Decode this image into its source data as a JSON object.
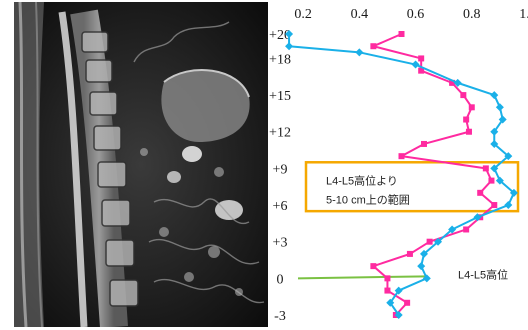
{
  "chart_data": {
    "type": "line",
    "x_ticks": [
      "0.2",
      "0.4",
      "0.6",
      "0.8",
      "1.0"
    ],
    "xlim": [
      0.1,
      1.0
    ],
    "y_ticks": [
      "+20",
      "+18",
      "+15",
      "+12",
      "+9",
      "+6",
      "+3",
      "0",
      "-3"
    ],
    "ylim": [
      -3,
      20
    ],
    "series": [
      {
        "color": "#ff2aa0",
        "points": [
          [
            0.55,
            20
          ],
          [
            0.45,
            19
          ],
          [
            0.62,
            18
          ],
          [
            0.62,
            17
          ],
          [
            0.73,
            16
          ],
          [
            0.77,
            15
          ],
          [
            0.8,
            14
          ],
          [
            0.78,
            13
          ],
          [
            0.79,
            12
          ],
          [
            0.63,
            11
          ],
          [
            0.55,
            10
          ],
          [
            0.85,
            9
          ],
          [
            0.87,
            8
          ],
          [
            0.83,
            7
          ],
          [
            0.88,
            6
          ],
          [
            0.83,
            5
          ],
          [
            0.78,
            4
          ],
          [
            0.65,
            3
          ],
          [
            0.58,
            2
          ],
          [
            0.45,
            1
          ],
          [
            0.5,
            0
          ],
          [
            0.5,
            -1
          ],
          [
            0.57,
            -2
          ],
          [
            0.53,
            -3
          ]
        ]
      },
      {
        "color": "#1ab0e8",
        "points": [
          [
            0.15,
            20
          ],
          [
            0.15,
            19
          ],
          [
            0.4,
            18.5
          ],
          [
            0.6,
            17.5
          ],
          [
            0.75,
            16
          ],
          [
            0.88,
            15
          ],
          [
            0.9,
            14
          ],
          [
            0.91,
            13
          ],
          [
            0.88,
            12
          ],
          [
            0.88,
            11
          ],
          [
            0.93,
            10
          ],
          [
            0.88,
            9
          ],
          [
            0.9,
            8
          ],
          [
            0.95,
            7
          ],
          [
            0.93,
            6
          ],
          [
            0.82,
            5
          ],
          [
            0.73,
            4
          ],
          [
            0.68,
            3
          ],
          [
            0.63,
            2
          ],
          [
            0.62,
            1
          ],
          [
            0.64,
            0
          ],
          [
            0.54,
            -1
          ],
          [
            0.51,
            -2
          ],
          [
            0.54,
            -3
          ]
        ]
      }
    ],
    "highlight_box": {
      "y_range": [
        5.5,
        9.5
      ],
      "color": "#f5a800",
      "label_lines": [
        "L4-L5高位より",
        "5-10 cm上の範囲"
      ]
    },
    "reference_line": {
      "y": 0,
      "color": "#7ac142",
      "label": "L4-L5高位"
    }
  }
}
